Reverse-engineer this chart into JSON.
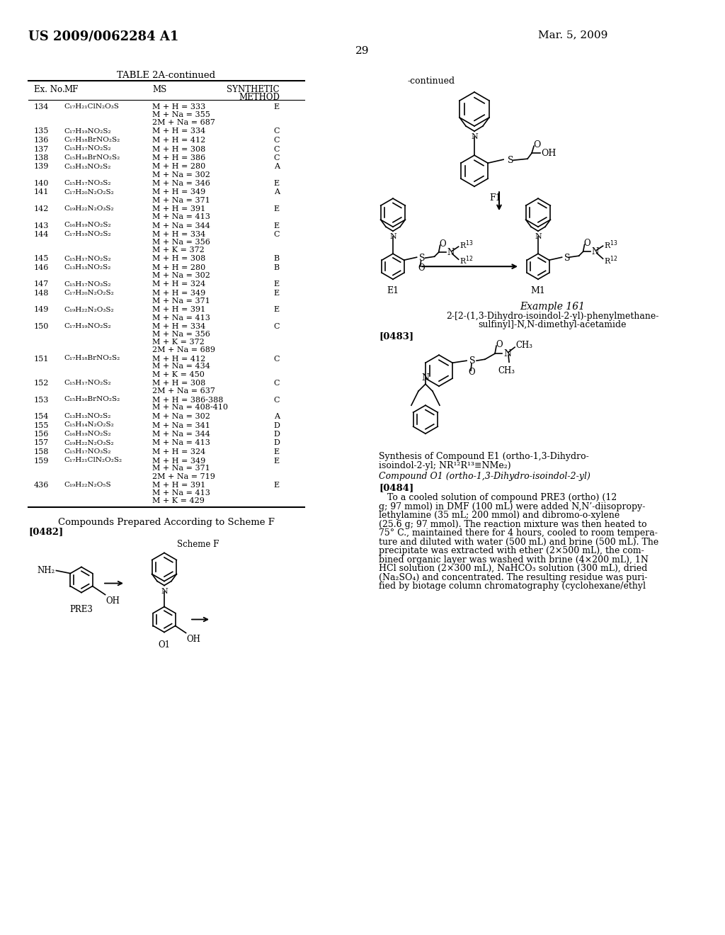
{
  "page_number": "29",
  "patent_number": "US 2009/0062284 A1",
  "patent_date": "Mar. 5, 2009",
  "background_color": "#ffffff"
}
